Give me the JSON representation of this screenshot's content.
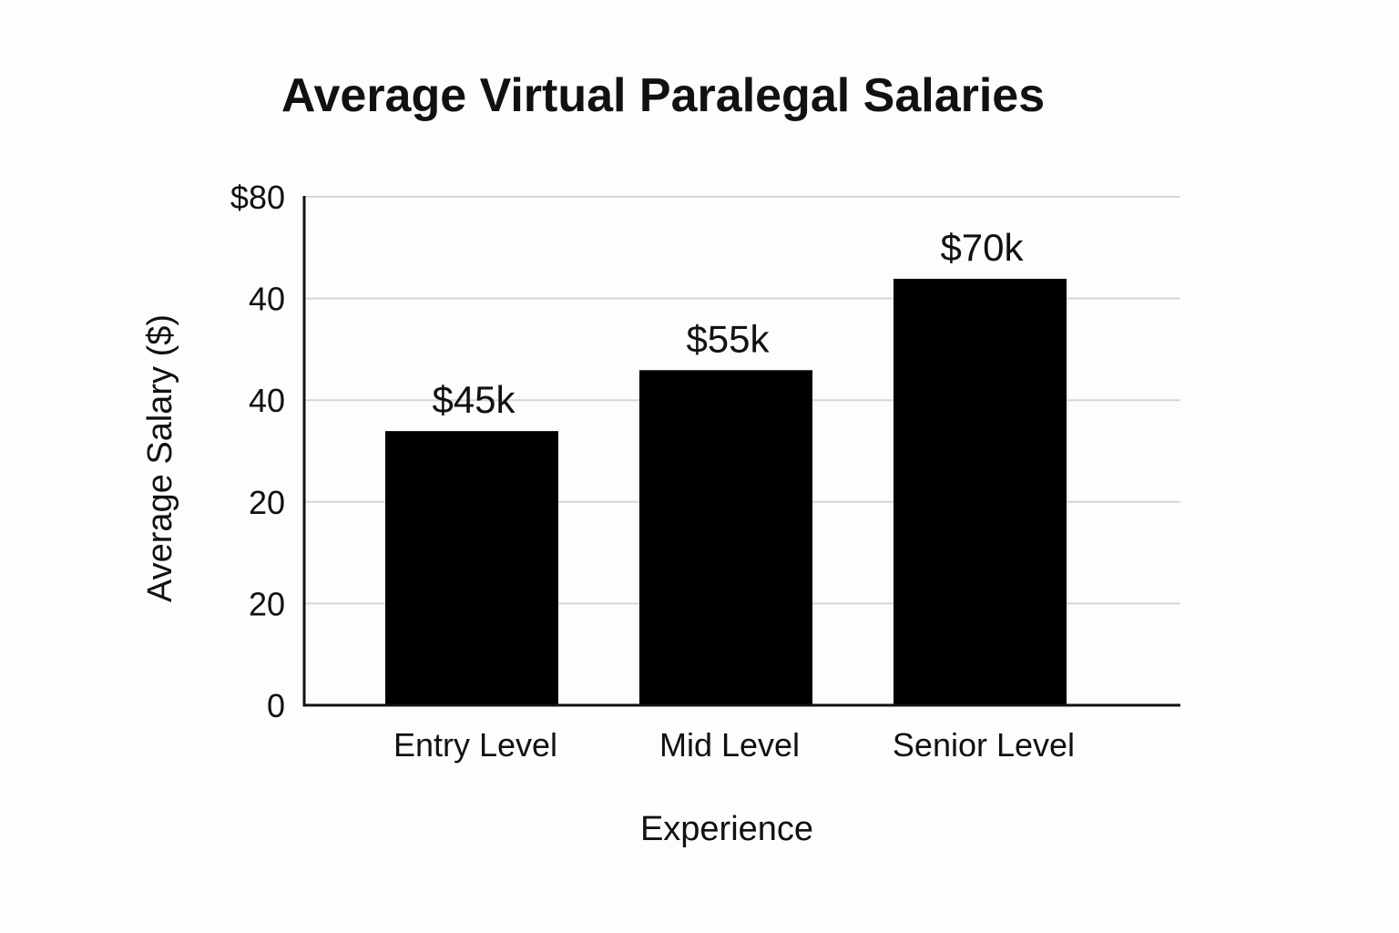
{
  "chart_data": {
    "type": "bar",
    "title": "Average Virtual Paralegal Salaries",
    "xlabel": "Experience",
    "ylabel": "Average Salary ($)",
    "categories": [
      "Entry Level",
      "Mid Level",
      "Senior Level"
    ],
    "values": [
      45000,
      55000,
      70000
    ],
    "data_labels": [
      "$45k",
      "$55k",
      "$70k"
    ],
    "y_tick_labels": [
      "0",
      "20",
      "20",
      "40",
      "40",
      "$80"
    ],
    "grid": true,
    "legend": "none",
    "colors": {
      "bars": "#000000",
      "grid": "#d6d6d6",
      "axis": "#111111",
      "background": "#fdfdfb"
    }
  }
}
